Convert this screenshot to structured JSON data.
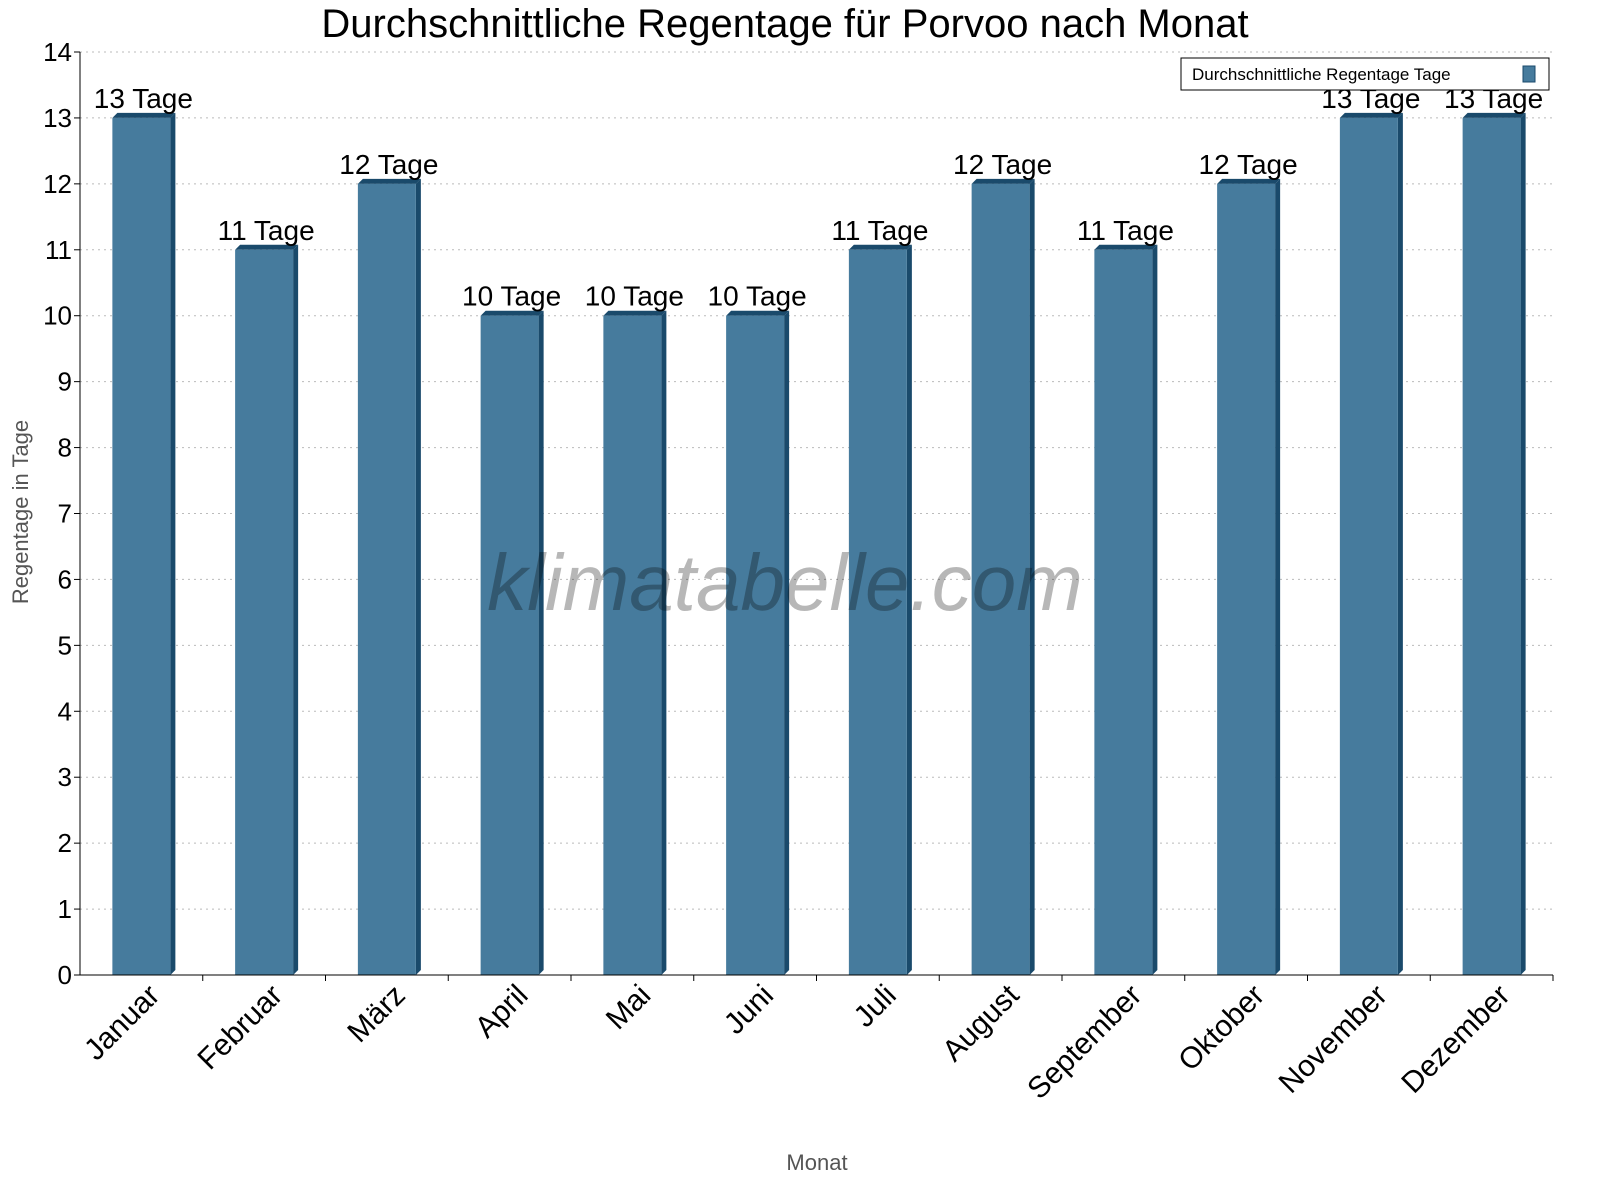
{
  "chart_data": {
    "type": "bar",
    "title": "Durchschnittliche Regentage für Porvoo nach Monat",
    "xlabel": "Monat",
    "ylabel": "Regentage in Tage",
    "ylim": [
      0,
      14
    ],
    "yticks": [
      0,
      1,
      2,
      3,
      4,
      5,
      6,
      7,
      8,
      9,
      10,
      11,
      12,
      13,
      14
    ],
    "grid": true,
    "legend_placement": "top-right",
    "categories": [
      "Januar",
      "Februar",
      "März",
      "April",
      "Mai",
      "Juni",
      "Juli",
      "August",
      "September",
      "Oktober",
      "November",
      "Dezember"
    ],
    "series": [
      {
        "name": "Durchschnittliche Regentage Tage",
        "values": [
          13,
          11,
          12,
          10,
          10,
          10,
          11,
          12,
          11,
          12,
          13,
          13
        ],
        "color": "#467b9d",
        "edge_color": "#1a4a6b"
      }
    ],
    "data_labels": [
      "13 Tage",
      "11 Tage",
      "12 Tage",
      "10 Tage",
      "10 Tage",
      "10 Tage",
      "11 Tage",
      "12 Tage",
      "11 Tage",
      "12 Tage",
      "13 Tage",
      "13 Tage"
    ],
    "watermark": "klimatabelle.com"
  }
}
